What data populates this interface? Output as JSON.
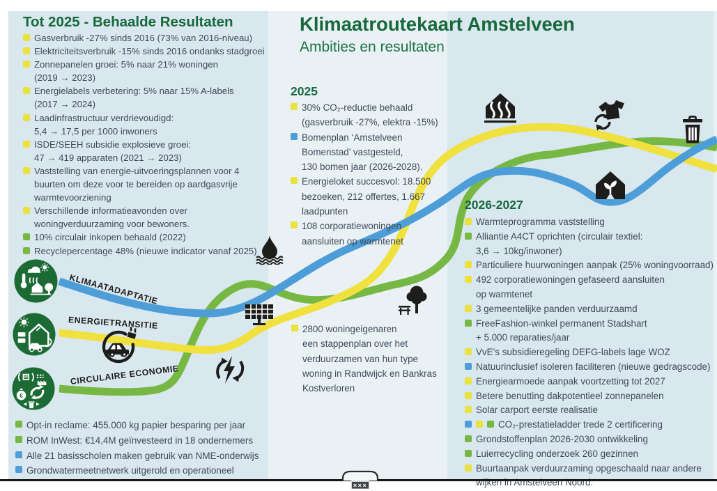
{
  "header": {
    "title": "Klimaatroutekaart Amstelveen",
    "subtitle": "Ambities en resultaten"
  },
  "colors": {
    "yellow": "#eae23f",
    "green": "#76b843",
    "blue": "#4d9ed8",
    "badge_green": "#1c6b35",
    "heading_green": "#17693c",
    "body_text": "#3f4a57",
    "icon_black": "#1d1d1b",
    "panel_blue": "#d9e7ee",
    "panel_light": "#e9f1f5"
  },
  "tracks": [
    {
      "id": "klimaatadaptatie",
      "label": "KLIMAATADAPTATIE",
      "color": "blue"
    },
    {
      "id": "energietransitie",
      "label": "ENERGIETRANSITIE",
      "color": "yellow"
    },
    {
      "id": "circulaire-economie",
      "label": "CIRCULAIRE ECONOMIE",
      "color": "green"
    }
  ],
  "sections": {
    "achieved": {
      "heading": "Tot 2025 - Behaalde Resultaten",
      "items": [
        {
          "bullets": [
            "yellow"
          ],
          "lines": [
            "Gasverbruik -27% sinds 2016 (73% van 2016-niveau)"
          ]
        },
        {
          "bullets": [
            "yellow"
          ],
          "lines": [
            "Elektriciteitsverbruik -15% sinds 2016 ondanks stadgroei"
          ]
        },
        {
          "bullets": [
            "yellow"
          ],
          "lines": [
            "Zonnepanelen groei: 5% naar 21% woningen",
            "(2019 → 2023)"
          ]
        },
        {
          "bullets": [
            "yellow"
          ],
          "lines": [
            "Energielabels verbetering: 5% naar 15% A-labels",
            "(2017 → 2024)"
          ]
        },
        {
          "bullets": [
            "yellow"
          ],
          "lines": [
            "Laadinfrastructuur verdrievoudigd:",
            "5,4 → 17,5 per 1000 inwoners"
          ]
        },
        {
          "bullets": [
            "yellow"
          ],
          "lines": [
            "ISDE/SEEH subsidie explosieve groei:",
            "47 → 419 apparaten (2021 → 2023)"
          ]
        },
        {
          "bullets": [
            "yellow"
          ],
          "lines": [
            "Vaststelling van energie-uitvoeringsplannen voor 4",
            "buurten om deze voor te bereiden op aardgasvrije",
            "warmtevoorziening"
          ]
        },
        {
          "bullets": [
            "yellow"
          ],
          "lines": [
            "Verschillende informatieavonden over",
            "woningverduurzaming voor bewoners."
          ]
        },
        {
          "bullets": [
            "green"
          ],
          "lines": [
            "10% circulair inkopen behaald (2022)"
          ]
        },
        {
          "bullets": [
            "green"
          ],
          "lines": [
            "Recyclepercentage 48% (nieuwe indicator vanaf 2025)"
          ]
        }
      ]
    },
    "y2025": {
      "heading": "2025",
      "items": [
        {
          "bullets": [
            "yellow"
          ],
          "lines": [
            "30% CO₂-reductie behaald",
            "(gasverbruik -27%, elektra -15%)"
          ]
        },
        {
          "bullets": [
            "blue"
          ],
          "lines": [
            "Bomenplan ‘Amstelveen",
            "Bomenstad’ vastgesteld,",
            "130 bomen jaar (2026-2028)."
          ]
        },
        {
          "bullets": [
            "yellow"
          ],
          "lines": [
            "Energieloket succesvol: 18.500",
            "bezoeken, 212 offertes, 1.667",
            "laadpunten"
          ]
        },
        {
          "bullets": [
            "yellow"
          ],
          "lines": [
            "108 corporatiewoningen",
            "aansluiten op warmtenet"
          ]
        }
      ]
    },
    "note": {
      "items": [
        {
          "bullets": [
            "yellow"
          ],
          "lines": [
            "2800 woningeigenaren",
            "een stappenplan over het",
            "verduurzamen van hun type",
            "woning in Randwijck en Bankras",
            "Kostverloren"
          ]
        }
      ]
    },
    "y2026_2027": {
      "heading": "2026-2027",
      "items": [
        {
          "bullets": [
            "yellow"
          ],
          "lines": [
            "Warmteprogramma vaststelling"
          ]
        },
        {
          "bullets": [
            "green"
          ],
          "lines": [
            "Alliantie A4CT oprichten (circulair textiel:",
            "3,6 → 10kg/inwoner)"
          ]
        },
        {
          "bullets": [
            "yellow"
          ],
          "lines": [
            "Particuliere huurwoningen aanpak (25% woningvoorraad)"
          ]
        },
        {
          "bullets": [
            "yellow"
          ],
          "lines": [
            "492 corporatiewoningen gefaseerd aansluiten",
            "op warmtenet"
          ]
        },
        {
          "bullets": [
            "yellow"
          ],
          "lines": [
            "3 gemeentelijke panden verduurzaamd"
          ]
        },
        {
          "bullets": [
            "green"
          ],
          "lines": [
            "FreeFashion-winkel permanent Stadshart",
            "+ 5.000 reparaties/jaar"
          ]
        },
        {
          "bullets": [
            "yellow"
          ],
          "lines": [
            "VvE’s subsidieregeling DEFG-labels lage WOZ"
          ]
        },
        {
          "bullets": [
            "blue"
          ],
          "lines": [
            "Natuurinclusief isoleren faciliteren (nieuwe gedragscode)"
          ]
        },
        {
          "bullets": [
            "yellow"
          ],
          "lines": [
            "Energiearmoede aanpak voortzetting tot 2027"
          ]
        },
        {
          "bullets": [
            "yellow"
          ],
          "lines": [
            "Betere benutting dakpotentieel zonnepanelen"
          ]
        },
        {
          "bullets": [
            "yellow"
          ],
          "lines": [
            "Solar carport eerste realisatie"
          ]
        },
        {
          "bullets": [
            "blue",
            "yellow",
            "green"
          ],
          "lines": [
            "CO₂-prestatieladder trede 2 certificering"
          ]
        },
        {
          "bullets": [
            "green"
          ],
          "lines": [
            "Grondstoffenplan 2026-2030 ontwikkeling"
          ]
        },
        {
          "bullets": [
            "green"
          ],
          "lines": [
            "Luierrecycling onderzoek 260 gezinnen"
          ]
        },
        {
          "bullets": [
            "yellow"
          ],
          "lines": [
            "Buurtaanpak verduurzaming opgeschaald naar andere",
            "wijken in Amstelveen Noord."
          ]
        }
      ]
    },
    "extra": {
      "items": [
        {
          "bullets": [
            "green"
          ],
          "lines": [
            "Opt-in reclame: 455.000 kg papier besparing per jaar"
          ]
        },
        {
          "bullets": [
            "green"
          ],
          "lines": [
            "ROM InWest: €14,4M geïnvesteerd in 18 ondernemers"
          ]
        },
        {
          "bullets": [
            "blue"
          ],
          "lines": [
            "Alle 21 basisscholen maken gebruik van NME-onderwijs"
          ]
        },
        {
          "bullets": [
            "blue"
          ],
          "lines": [
            "Grondwatermeetnetwerk uitgerold en operationeel"
          ]
        }
      ]
    }
  },
  "icons": [
    "water-drop",
    "solar-panel",
    "ev-charging",
    "green-energy-cycle",
    "tree-bench",
    "district-heating-house",
    "textile-recycling",
    "waste-bin",
    "sustainable-home",
    "amstelveen-bridge"
  ],
  "footer": {
    "bridge_label": "×××"
  }
}
